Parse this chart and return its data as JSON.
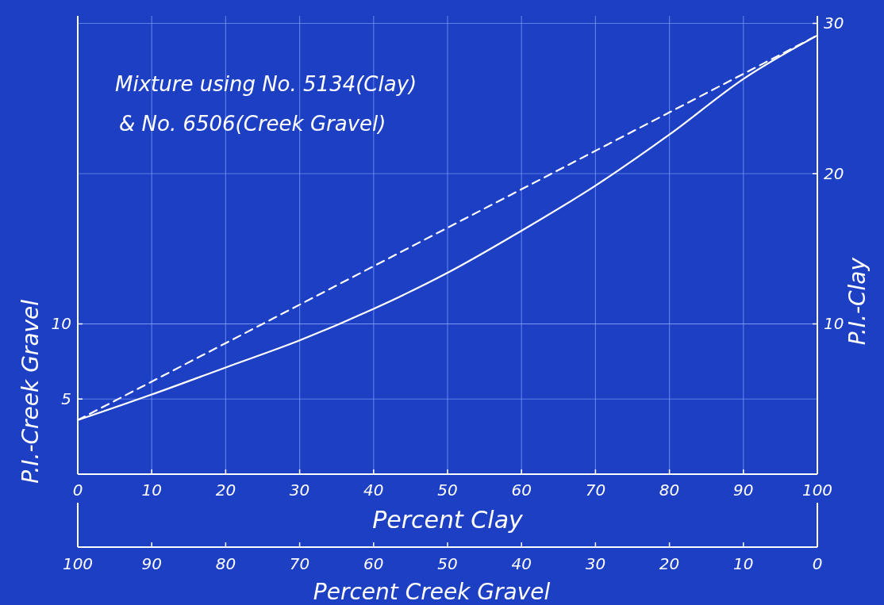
{
  "chart_data": {
    "type": "line",
    "title": "Mixture using No. 5134(Clay)",
    "subtitle": "& No. 6506(Creek Gravel)",
    "xlabel": "Percent Clay",
    "x2label": "Percent Creek Gravel",
    "ylabel": "P.I.-Creek Gravel",
    "y2label": "P.I.-Clay",
    "x": [
      0,
      10,
      20,
      30,
      40,
      50,
      60,
      70,
      80,
      90,
      100
    ],
    "series": [
      {
        "color": "#ffffff",
        "line_style": "solid",
        "values": [
          3.6,
          5.3,
          7.1,
          8.9,
          11,
          13.4,
          16.2,
          19.2,
          22.6,
          26.3,
          29.2
        ]
      },
      {
        "color": "#ffffff",
        "line_style": "dashed",
        "x": [
          0,
          100
        ],
        "values": [
          3.6,
          29.2
        ]
      }
    ],
    "xlim": [
      0,
      100
    ],
    "xticks": [
      0,
      10,
      20,
      30,
      40,
      50,
      60,
      70,
      80,
      90,
      100
    ],
    "x2lim": [
      100,
      0
    ],
    "x2ticks": [
      100,
      90,
      80,
      70,
      60,
      50,
      40,
      30,
      20,
      10,
      0
    ],
    "ylim": [
      0,
      30.5
    ],
    "yticks": [
      5,
      10
    ],
    "y2lim": [
      0,
      30.5
    ],
    "y2ticks": [
      10,
      20,
      30
    ],
    "grid": true,
    "marker": "none"
  }
}
